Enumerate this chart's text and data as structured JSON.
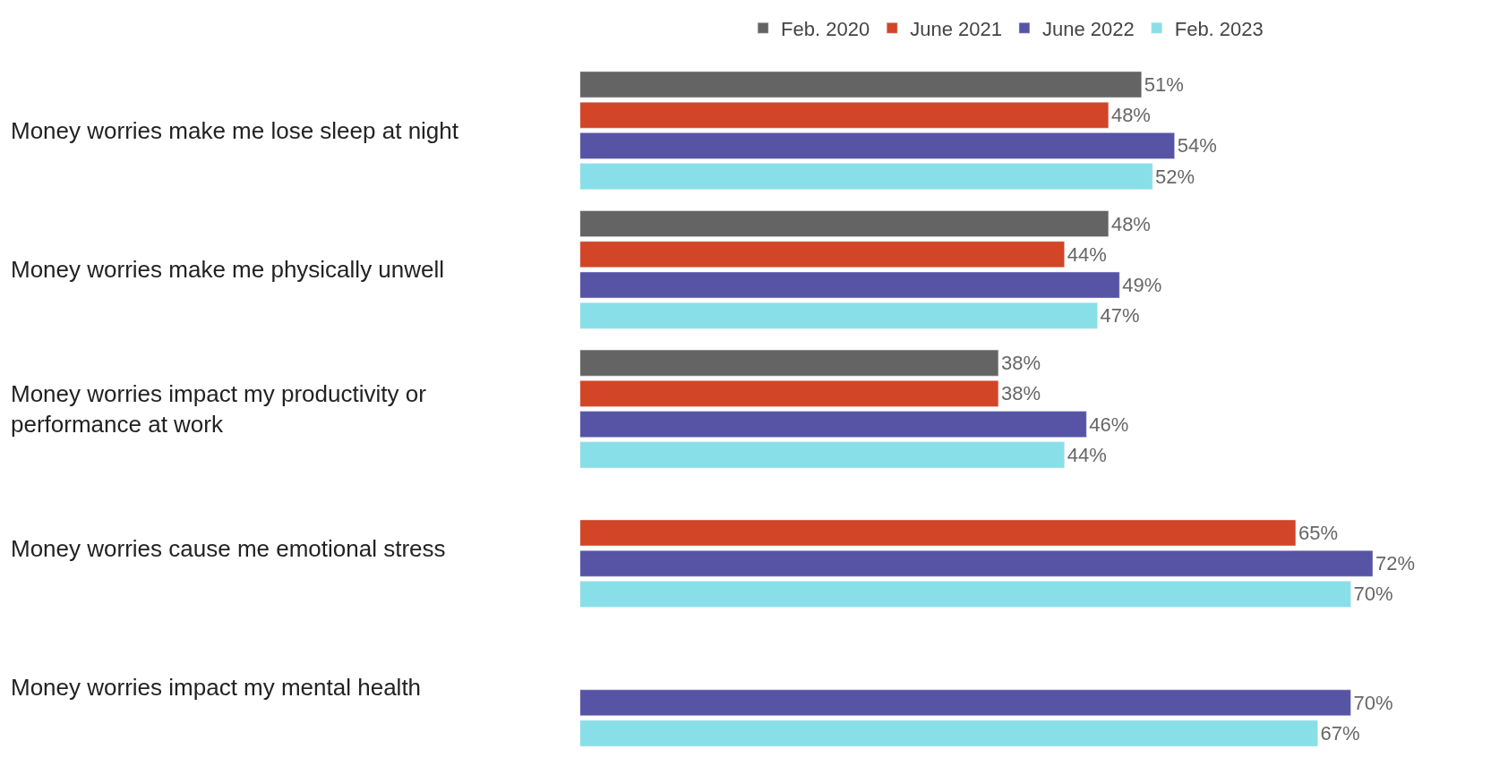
{
  "chart_data": {
    "type": "bar",
    "orientation": "horizontal",
    "legend": "top right",
    "tick_labels": "y",
    "categories": [
      "Money worries make me lose sleep at night",
      "Money worries make me physically unwell",
      "Money worries impact my productivity or performance at work",
      "Money worries cause me emotional stress",
      "Money worries impact my mental health"
    ],
    "series": [
      {
        "name": "Feb. 2020",
        "color": "#646464",
        "values": [
          51,
          48,
          38,
          null,
          null
        ],
        "value_labels": [
          "51%",
          "48%",
          "38%",
          null,
          null
        ]
      },
      {
        "name": "June 2021",
        "color": "#d24527",
        "values": [
          48,
          44,
          38,
          65,
          null
        ],
        "value_labels": [
          "48%",
          "44%",
          "38%",
          "65%",
          null
        ]
      },
      {
        "name": "June 2022",
        "color": "#5753a5",
        "values": [
          54,
          49,
          46,
          72,
          70
        ],
        "value_labels": [
          "54%",
          "49%",
          "46%",
          "72%",
          "70%"
        ]
      },
      {
        "name": "Feb. 2023",
        "color": "#88dfe8",
        "values": [
          52,
          47,
          44,
          70,
          67
        ],
        "value_labels": [
          "52%",
          "47%",
          "44%",
          "70%",
          "67%"
        ]
      }
    ]
  }
}
